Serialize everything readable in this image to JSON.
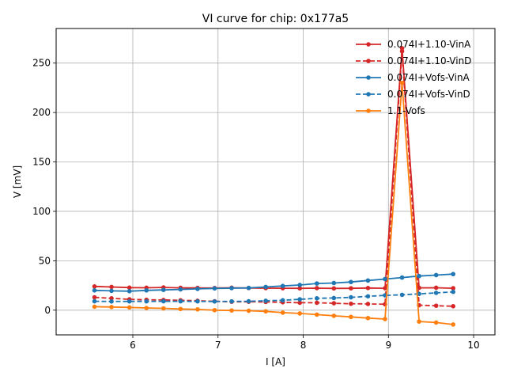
{
  "chart_data": {
    "type": "line",
    "title": "VI curve for chip: 0x177a5",
    "xlabel": "I [A]",
    "ylabel": "V [mV]",
    "xlim": [
      5.1,
      10.25
    ],
    "ylim": [
      -25,
      285
    ],
    "xticks": [
      "6",
      "7",
      "8",
      "9",
      "10"
    ],
    "yticks": [
      "0",
      "50",
      "100",
      "150",
      "200",
      "250"
    ],
    "grid": true,
    "legend_position": "top-right",
    "x": [
      5.55,
      5.75,
      5.96,
      6.16,
      6.36,
      6.56,
      6.76,
      6.96,
      7.16,
      7.36,
      7.56,
      7.76,
      7.96,
      8.16,
      8.36,
      8.56,
      8.76,
      8.96,
      9.16,
      9.36,
      9.56,
      9.76
    ],
    "series": [
      {
        "name": "0.074I+1.10-VinA",
        "color": "#d62728",
        "style": "solid",
        "values": [
          24,
          23.5,
          22.8,
          22.7,
          23,
          22.6,
          22.5,
          22.4,
          22.7,
          22.4,
          22.3,
          22.2,
          22.1,
          22.3,
          22.0,
          22.1,
          22.4,
          22.2,
          265,
          22.6,
          22.7,
          22.2
        ]
      },
      {
        "name": "0.074I+1.10-VinD",
        "color": "#d62728",
        "style": "dashed",
        "values": [
          13,
          12,
          11,
          10.5,
          10.3,
          10,
          9.5,
          9,
          8.5,
          8.5,
          8.3,
          8,
          7.5,
          7.5,
          7,
          6.5,
          6.3,
          6,
          262,
          5,
          4.5,
          4
        ]
      },
      {
        "name": "0.074I+Vofs-VinA",
        "color": "#1f77b4",
        "style": "solid",
        "values": [
          20,
          19.5,
          19.2,
          20,
          20.5,
          21,
          21.5,
          22,
          22.3,
          22.5,
          23.5,
          24.5,
          25.5,
          27,
          27.5,
          28.5,
          30,
          31.5,
          33,
          34.5,
          35.5,
          36.5
        ]
      },
      {
        "name": "0.074I+Vofs-VinD",
        "color": "#1f77b4",
        "style": "dashed",
        "values": [
          9,
          8.8,
          8.9,
          8.9,
          9,
          9,
          8.9,
          8.8,
          8.9,
          9,
          9.5,
          10,
          11,
          12,
          12.3,
          13,
          14,
          15,
          15.5,
          16.5,
          17.5,
          18.5
        ]
      },
      {
        "name": "1.1-Vofs",
        "color": "#ff7f0e",
        "style": "solid",
        "values": [
          3.5,
          3.2,
          2.8,
          2.2,
          1.8,
          1.2,
          0.8,
          0,
          -0.3,
          -0.6,
          -1.2,
          -2.5,
          -3.3,
          -4.5,
          -5.7,
          -6.8,
          -8,
          -9,
          230,
          -11.5,
          -12.5,
          -14.5
        ]
      }
    ]
  }
}
